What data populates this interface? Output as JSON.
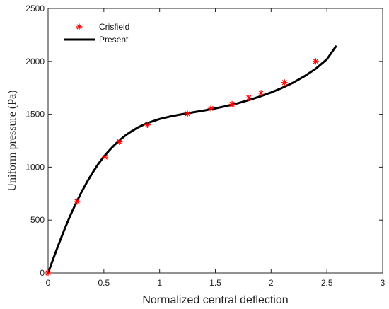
{
  "chart_data": {
    "type": "line",
    "title": "",
    "xlabel": "Normalized central deflection",
    "ylabel": "Uniform pressure (Pa)",
    "xlim": [
      0,
      3
    ],
    "ylim": [
      0,
      2500
    ],
    "x_ticks": [
      0,
      0.5,
      1,
      1.5,
      2,
      2.5,
      3
    ],
    "x_tick_labels": [
      "0",
      "0.5",
      "1",
      "1.5",
      "2",
      "2.5",
      "3"
    ],
    "y_ticks": [
      0,
      500,
      1000,
      1500,
      2000,
      2500
    ],
    "y_tick_labels": [
      "0",
      "500",
      "1000",
      "1500",
      "2000",
      "2500"
    ],
    "grid": false,
    "legend_position": "top-left",
    "series": [
      {
        "name": "Crisfield",
        "style": "markers",
        "marker": "asterisk",
        "color": "#ff0000",
        "x": [
          0,
          0.26,
          0.51,
          0.64,
          0.89,
          1.25,
          1.46,
          1.65,
          1.8,
          1.91,
          2.12,
          2.4
        ],
        "y": [
          0,
          675,
          1095,
          1240,
          1400,
          1505,
          1555,
          1595,
          1655,
          1700,
          1800,
          2000
        ]
      },
      {
        "name": "Present",
        "style": "line",
        "color": "#000000",
        "x": [
          0,
          0.05,
          0.1,
          0.15,
          0.2,
          0.25,
          0.3,
          0.35,
          0.4,
          0.45,
          0.5,
          0.55,
          0.6,
          0.65,
          0.7,
          0.75,
          0.8,
          0.85,
          0.9,
          1.0,
          1.1,
          1.2,
          1.3,
          1.4,
          1.5,
          1.6,
          1.7,
          1.8,
          1.9,
          2.0,
          2.1,
          2.2,
          2.3,
          2.4,
          2.5,
          2.58
        ],
        "y": [
          0,
          145,
          285,
          420,
          545,
          660,
          765,
          862,
          950,
          1030,
          1100,
          1160,
          1215,
          1262,
          1305,
          1340,
          1372,
          1398,
          1420,
          1455,
          1480,
          1500,
          1518,
          1536,
          1556,
          1578,
          1604,
          1634,
          1668,
          1706,
          1750,
          1800,
          1860,
          1930,
          2020,
          2140
        ]
      }
    ]
  }
}
